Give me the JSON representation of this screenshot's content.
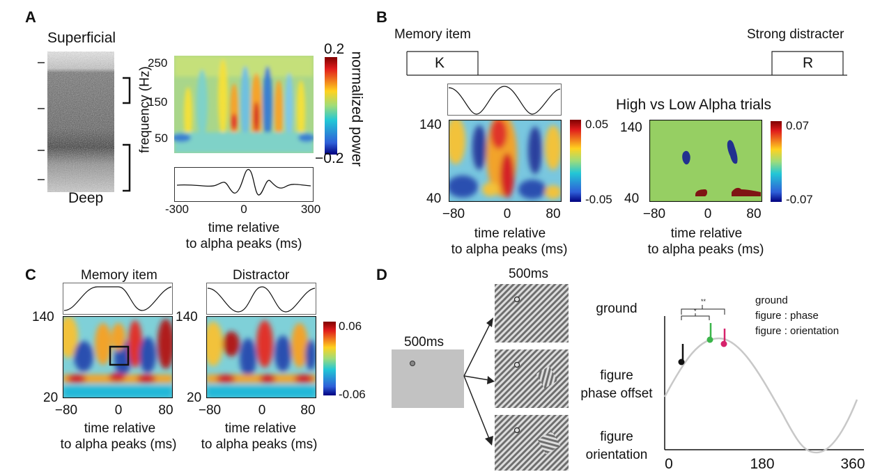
{
  "panels": {
    "A": {
      "letter": "A",
      "superficial_label": "Superficial",
      "deep_label": "Deep",
      "ylabel": "frequency (Hz)",
      "yticks": [
        "250",
        "150",
        "50"
      ],
      "xticks": [
        "-300",
        "0",
        "300"
      ],
      "xlabel_line1": "time relative",
      "xlabel_line2": "to alpha peaks (ms)",
      "colorbar_max": "0.2",
      "colorbar_min": "−0.2",
      "colorbar_label": "normalized power"
    },
    "B": {
      "letter": "B",
      "memory_item_label": "Memory item",
      "memory_letter": "K",
      "distracter_label": "Strong distracter",
      "distracter_letter": "R",
      "left_yticks": [
        "140",
        "40"
      ],
      "left_xticks": [
        "−80",
        "0",
        "80"
      ],
      "left_cbar_max": "0.05",
      "left_cbar_min": "-0.05",
      "right_title": "High vs Low Alpha trials",
      "right_yticks": [
        "140",
        "40"
      ],
      "right_xticks": [
        "−80",
        "0",
        "80"
      ],
      "right_cbar_max": "0.07",
      "right_cbar_min": "-0.07",
      "xlabel_line1": "time relative",
      "xlabel_line2": "to alpha peaks (ms)"
    },
    "C": {
      "letter": "C",
      "left_title": "Memory item",
      "right_title": "Distractor",
      "left_yticks": [
        "140",
        "20"
      ],
      "right_yticks": [
        "140",
        "20"
      ],
      "xticks": [
        "−80",
        "0",
        "80"
      ],
      "cbar_max": "0.06",
      "cbar_min": "-0.06",
      "xlabel_line1": "time relative",
      "xlabel_line2": "to alpha peaks (ms)"
    },
    "D": {
      "letter": "D",
      "first_duration": "500ms",
      "second_duration": "500ms",
      "conditions": [
        {
          "line1": "ground",
          "line2": ""
        },
        {
          "line1": "figure",
          "line2": "phase offset"
        },
        {
          "line1": "figure",
          "line2": "orientation"
        }
      ],
      "legend": [
        "ground",
        "figure : phase",
        "figure : orientation"
      ],
      "xticks": [
        "0",
        "180",
        "360"
      ],
      "sig_marks": [
        "**",
        "*"
      ],
      "colors": {
        "ground": "#111111",
        "phase": "#3bb54a",
        "orientation": "#d6226b",
        "sine": "#c8c8c8"
      }
    }
  }
}
